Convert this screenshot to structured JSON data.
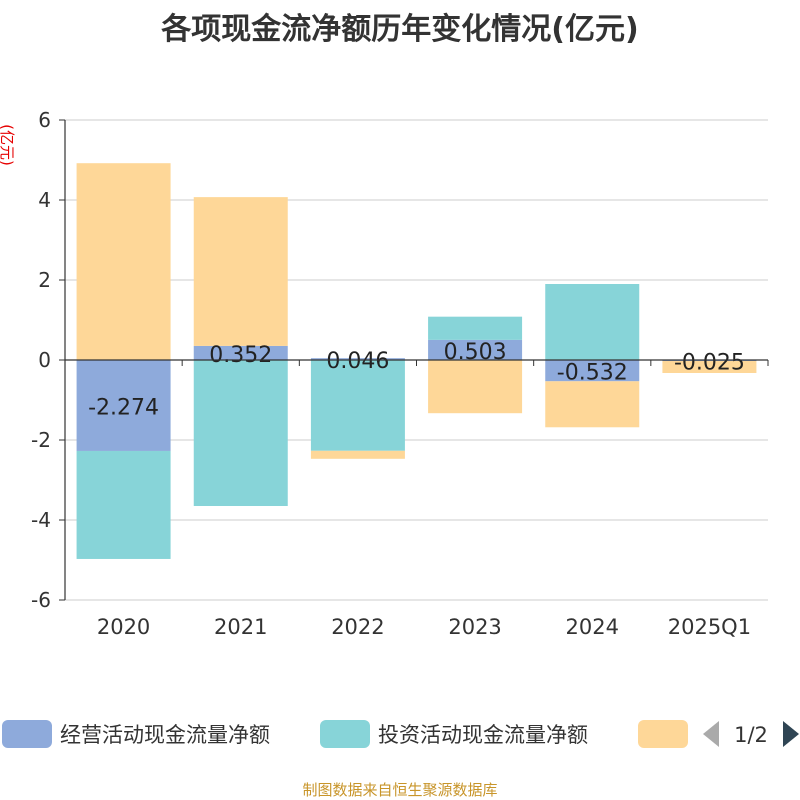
{
  "chart_data": {
    "type": "bar",
    "stacked": true,
    "title": "各项现金流净额历年变化情况(亿元)",
    "ylabel": "(亿元)",
    "xlabel": "",
    "categories": [
      "2020",
      "2021",
      "2022",
      "2023",
      "2024",
      "2025Q1"
    ],
    "ylim": [
      -6,
      6
    ],
    "yticks": [
      6,
      4,
      2,
      0,
      -2,
      -4,
      -6
    ],
    "grid": true,
    "legend_position": "bottom",
    "series": [
      {
        "name": "经营活动现金流量净额",
        "color": "#8eaadb",
        "values": [
          -2.274,
          0.352,
          0.046,
          0.503,
          -0.532,
          -0.025
        ],
        "labels": [
          "-2.274",
          "0.352",
          "0.046",
          "0.503",
          "-0.532",
          "-0.025"
        ]
      },
      {
        "name": "投资活动现金流量净额",
        "color": "#87d4d8",
        "values": [
          -2.7,
          -3.65,
          -2.27,
          0.58,
          1.9,
          0.01
        ]
      },
      {
        "name": "",
        "color": "#fed798",
        "values": [
          4.92,
          3.72,
          -0.2,
          -1.33,
          -1.15,
          -0.3
        ]
      }
    ]
  },
  "legend": {
    "page_indicator": "1/2"
  },
  "source_note": "制图数据来自恒生聚源数据库"
}
